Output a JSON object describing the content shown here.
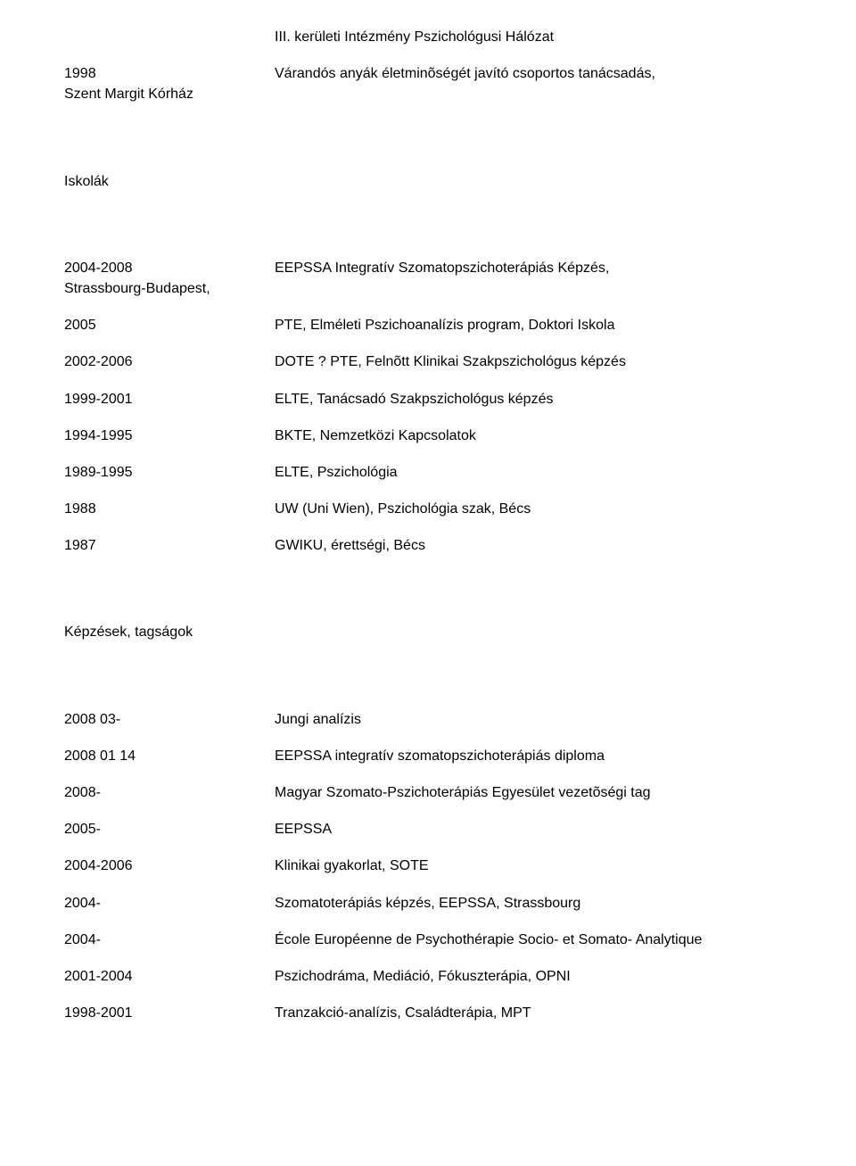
{
  "header": {
    "network": "III. kerületi Intézmény Pszichológusi Hálózat",
    "year_1998": "1998",
    "hospital": "Szent Margit Kórház",
    "counseling": "Várandós anyák életminõségét javító csoportos tanácsadás,"
  },
  "schools": {
    "heading": "Iskolák",
    "rows": [
      {
        "left1": "2004-2008",
        "left2": "Strassbourg-Budapest,",
        "right": "EEPSSA Integratív Szomatopszichoterápiás Képzés,"
      },
      {
        "left1": "2005",
        "right": "PTE, Elméleti Pszichoanalízis program, Doktori Iskola"
      },
      {
        "left1": "2002-2006",
        "right": "DOTE ? PTE, Felnõtt Klinikai Szakpszichológus képzés"
      },
      {
        "left1": "1999-2001",
        "right": "ELTE, Tanácsadó Szakpszichológus képzés"
      },
      {
        "left1": "1994-1995",
        "right": "BKTE, Nemzetközi Kapcsolatok"
      },
      {
        "left1": "1989-1995",
        "right": "ELTE, Pszichológia"
      },
      {
        "left1": "1988",
        "right": "UW (Uni Wien), Pszichológia szak, Bécs"
      },
      {
        "left1": "1987",
        "right": "GWIKU, érettségi, Bécs"
      }
    ]
  },
  "trainings": {
    "heading": "Képzések, tagságok",
    "rows": [
      {
        "left": "2008 03-",
        "right": "Jungi analízis"
      },
      {
        "left": "2008 01 14",
        "right": "EEPSSA integratív szomatopszichoterápiás diploma"
      },
      {
        "left": "2008-",
        "right": "Magyar Szomato-Pszichoterápiás Egyesület vezetõségi tag"
      },
      {
        "left": "2005-",
        "right": "EEPSSA"
      },
      {
        "left": "2004-2006",
        "right": "Klinikai gyakorlat, SOTE"
      },
      {
        "left": "2004-",
        "right": "Szomatoterápiás képzés, EEPSSA, Strassbourg"
      },
      {
        "left": "2004-",
        "right": "École Européenne de Psychothérapie Socio- et Somato- Analytique"
      },
      {
        "left": "2001-2004",
        "right": "Pszichodráma, Mediáció, Fókuszterápia, OPNI"
      },
      {
        "left": "1998-2001",
        "right": "Tranzakció-analízis, Családterápia, MPT"
      }
    ]
  }
}
